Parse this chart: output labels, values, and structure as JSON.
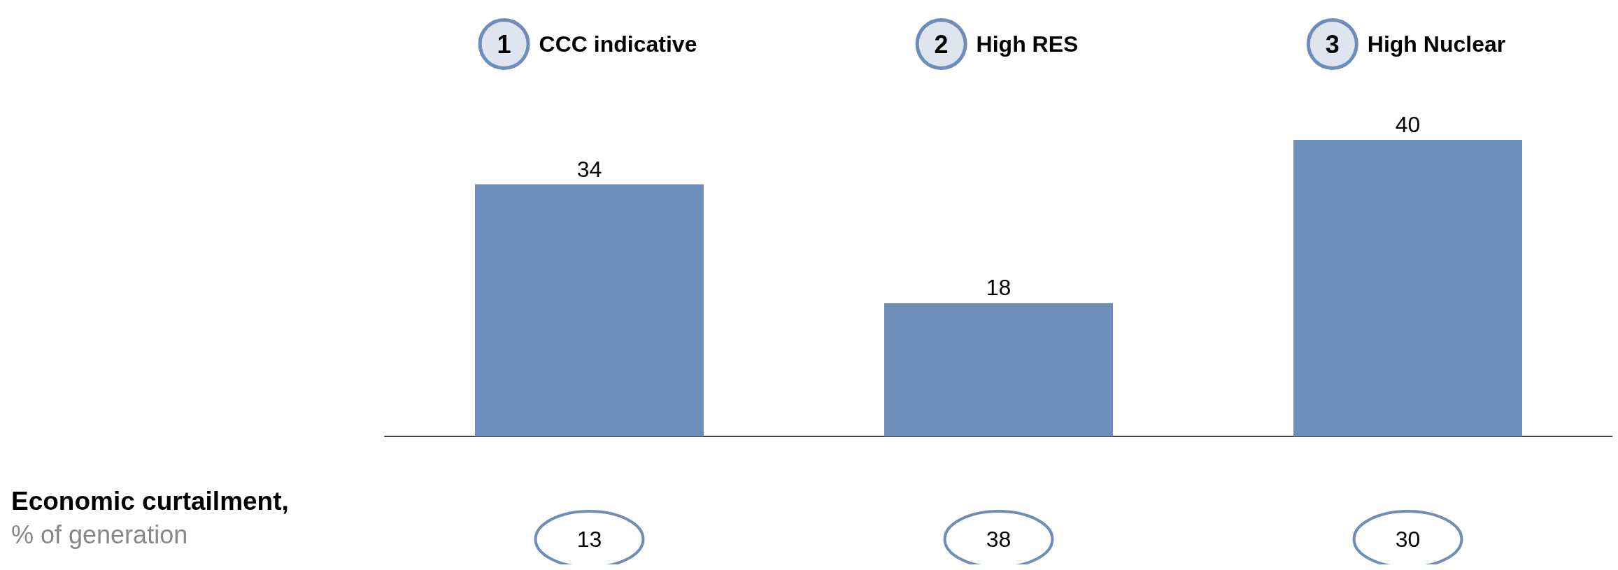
{
  "chart_data": {
    "type": "bar",
    "categories": [
      "CCC indicative",
      "High RES",
      "High Nuclear"
    ],
    "values": [
      34,
      18,
      40
    ],
    "color": "#6d8eb9",
    "data_labels": true,
    "annotations": [
      "1",
      "2",
      "3",
      "13",
      "38",
      "30",
      "Economic curtailment,",
      "% of generation"
    ]
  }
}
